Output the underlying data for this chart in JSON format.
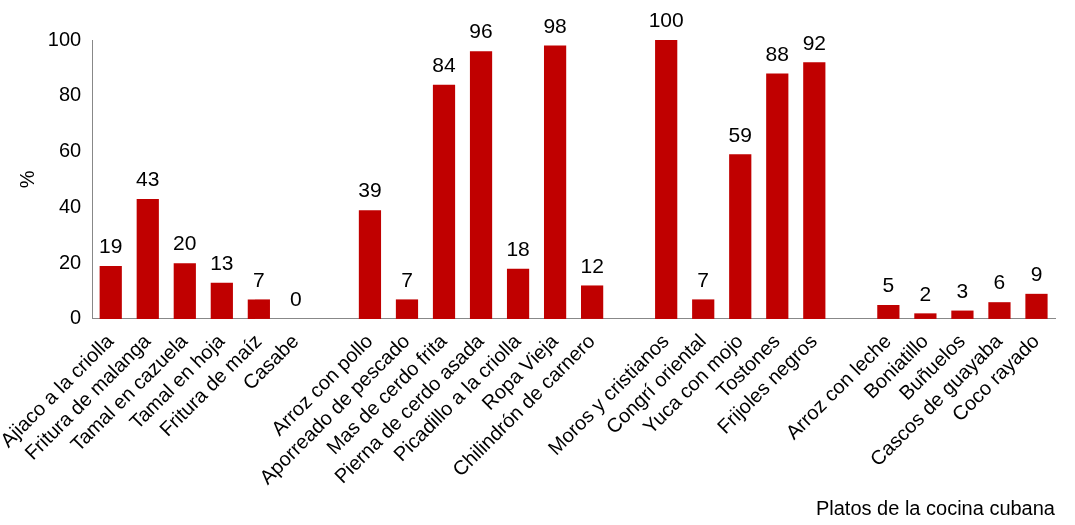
{
  "chart_data": {
    "type": "bar",
    "xlabel": "Platos de la cocina cubana",
    "ylabel": "%",
    "categories": [
      "Ajiaco a la criolla",
      "Fritura de malanga",
      "Tamal en cazuela",
      "Tamal en hoja",
      "Fritura de maíz",
      "Casabe",
      null,
      "Arroz con pollo",
      "Aporreado de pescado",
      "Mas de cerdo frita",
      "Pierna de cerdo asada",
      "Picadillo a la criolla",
      "Ropa Vieja",
      "Chilindrón de carnero",
      null,
      "Moros y cristianos",
      "Congrí oriental",
      "Yuca con mojo",
      "Tostones",
      "Frijoles negros",
      null,
      "Arroz con leche",
      "Boniatillo",
      "Buñuelos",
      "Cascos de guayaba",
      "Coco rayado"
    ],
    "values": [
      19,
      43,
      20,
      13,
      7,
      0,
      null,
      39,
      7,
      84,
      96,
      18,
      98,
      12,
      null,
      100,
      7,
      59,
      88,
      92,
      null,
      5,
      2,
      3,
      6,
      9
    ],
    "color": "#c00000",
    "ylim": [
      0,
      100
    ],
    "yticks": [
      0,
      20,
      40,
      60,
      80,
      100
    ],
    "grid": false,
    "legend": false,
    "data_labels": true
  }
}
